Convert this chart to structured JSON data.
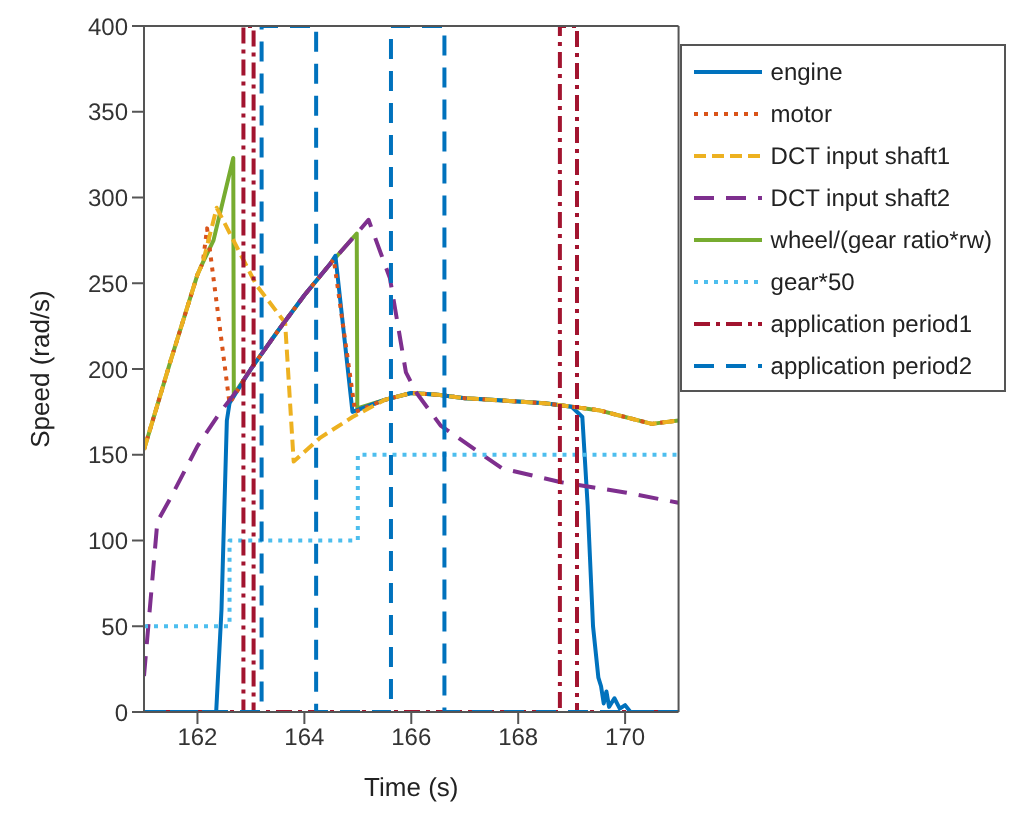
{
  "chart_data": {
    "type": "line",
    "xlabel": "Time (s)",
    "ylabel": "Speed (rad/s)",
    "xlim": [
      161,
      171
    ],
    "xticks": [
      162,
      164,
      166,
      168,
      170
    ],
    "ylim": [
      0,
      400
    ],
    "yticks": [
      0,
      50,
      100,
      150,
      200,
      250,
      300,
      350,
      400
    ],
    "grid": false,
    "legend": "top right",
    "marker": "none",
    "series": [
      {
        "name": "engine",
        "color": "#0072bd",
        "line_style": "solid",
        "x": [
          161,
          162.35,
          162.45,
          162.55,
          162.6,
          163,
          163.5,
          164,
          164.5,
          164.58,
          164.9,
          165.5,
          166,
          166.5,
          167,
          167.5,
          168,
          168.5,
          169,
          169.2,
          169.3,
          169.4,
          169.5,
          169.55,
          169.6,
          169.65,
          169.7,
          169.8,
          169.9,
          170,
          170.1,
          171
        ],
        "values": [
          0,
          0,
          60,
          170,
          180,
          200,
          222,
          243,
          262,
          266,
          175,
          182,
          186,
          185,
          183,
          182,
          181,
          180,
          178,
          172,
          120,
          50,
          20,
          15,
          5,
          12,
          3,
          8,
          2,
          4,
          0,
          0
        ]
      },
      {
        "name": "motor",
        "color": "#d95319",
        "line_style": "dotted",
        "x": [
          161,
          161.5,
          162,
          162.1,
          162.18,
          162.6,
          163,
          163.5,
          164,
          164.5,
          164.55,
          164.95,
          165.5,
          166,
          166.5,
          167,
          167.5,
          168,
          168.5,
          169,
          169.5,
          170,
          170.5,
          171
        ],
        "values": [
          153,
          205,
          255,
          262,
          282,
          180,
          200,
          222,
          243,
          262,
          264,
          175,
          182,
          186,
          185,
          183,
          182,
          181,
          180,
          178,
          176,
          172,
          168,
          170
        ]
      },
      {
        "name": "DCT input shaft1",
        "color": "#edb120",
        "line_style": "dashed",
        "x": [
          161,
          161.5,
          162,
          162.1,
          162.36,
          163.1,
          163.64,
          163.8,
          164.3,
          164.9,
          165.5,
          166,
          166.5,
          167,
          167.5,
          168,
          168.5,
          169,
          169.5,
          170,
          170.5,
          171
        ],
        "values": [
          153,
          205,
          255,
          262,
          294,
          249,
          227,
          146,
          160,
          172,
          182,
          186,
          185,
          183,
          182,
          181,
          180,
          178,
          176,
          172,
          168,
          170
        ]
      },
      {
        "name": "DCT input shaft2",
        "color": "#7e2f8e",
        "line_style": "dashed",
        "x": [
          161,
          161.25,
          161.5,
          162,
          162.43,
          162.68,
          163,
          163.5,
          164,
          164.5,
          164.98,
          165.2,
          165.6,
          165.9,
          166.1,
          166.55,
          167.7,
          168.8,
          170,
          171
        ],
        "values": [
          21,
          111,
          125,
          155,
          175,
          185,
          200,
          222,
          243,
          262,
          279,
          287,
          253,
          198,
          186,
          167,
          142,
          134,
          128,
          122
        ]
      },
      {
        "name": "wheel/(gear ratio*rw)",
        "color": "#77ac30",
        "line_style": "solid",
        "x": [
          161,
          161.5,
          162,
          162.1,
          162.3,
          162.67,
          162.68,
          163,
          163.5,
          164,
          164.5,
          164.98,
          164.99,
          165.5,
          166,
          166.5,
          167,
          167.5,
          168,
          168.5,
          169,
          169.5,
          170,
          170.5,
          171
        ],
        "values": [
          153,
          205,
          255,
          262,
          275,
          323,
          185,
          200,
          222,
          243,
          262,
          279,
          177,
          182,
          186,
          185,
          183,
          182,
          181,
          180,
          178,
          176,
          172,
          168,
          170
        ]
      },
      {
        "name": "gear*50",
        "color": "#4dbeee",
        "line_style": "dotted",
        "x": [
          161,
          162.6,
          162.6,
          165,
          165,
          171
        ],
        "values": [
          50,
          50,
          100,
          100,
          150,
          150
        ]
      },
      {
        "name": "application period1",
        "color": "#a2142f",
        "line_style": "dashdot",
        "x": [
          161,
          162.86,
          162.86,
          163.05,
          163.05,
          168.78,
          168.78,
          169.1,
          169.1,
          171
        ],
        "values": [
          0,
          0,
          400,
          400,
          0,
          0,
          400,
          400,
          0,
          0
        ]
      },
      {
        "name": "application period2",
        "color": "#0072bd",
        "line_style": "dashed",
        "x": [
          161,
          163.2,
          163.2,
          164.22,
          164.22,
          165.62,
          165.62,
          166.62,
          166.62,
          171
        ],
        "values": [
          0,
          0,
          400,
          400,
          0,
          0,
          400,
          400,
          0,
          0
        ]
      }
    ]
  }
}
